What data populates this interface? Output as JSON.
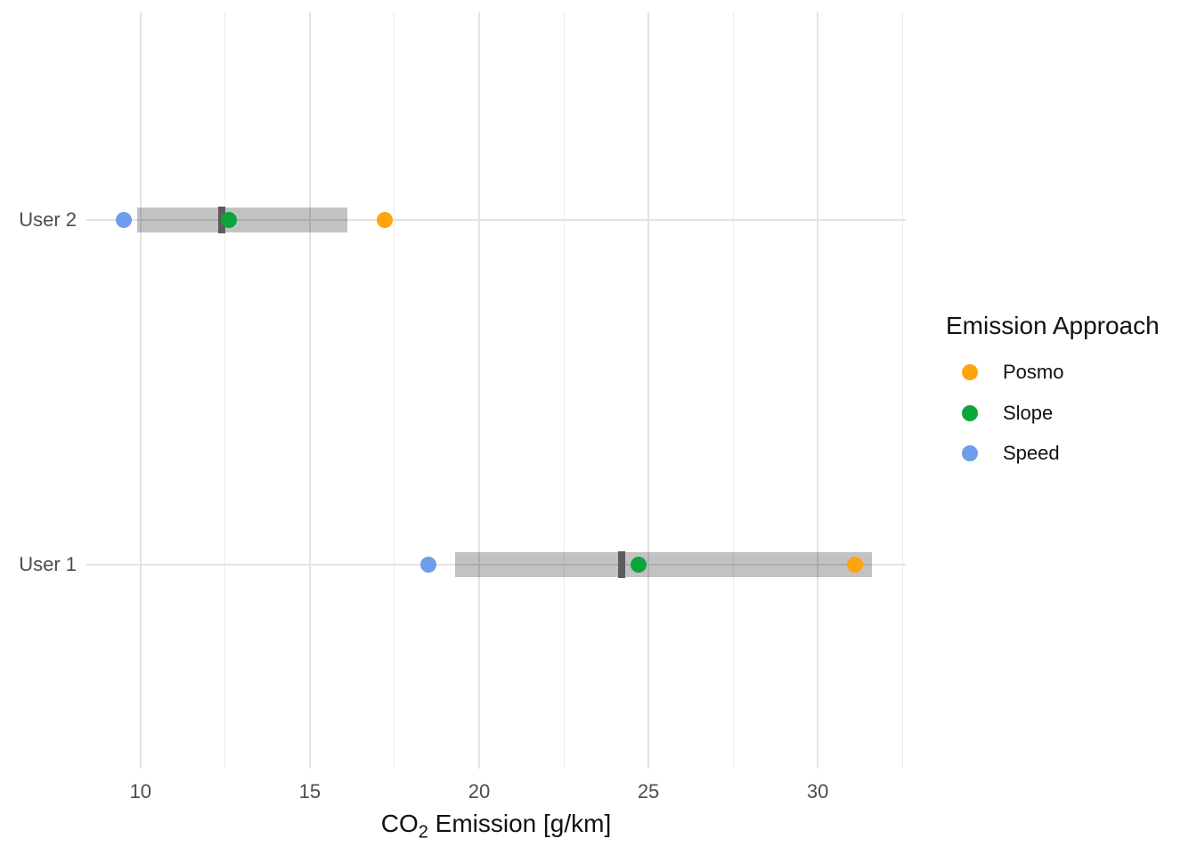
{
  "chart_data": {
    "type": "scatter",
    "title": "",
    "xlabel": {
      "prefix": "CO",
      "sub": "2",
      "suffix": " Emission [g/km]"
    },
    "ylabel": "",
    "xlim": [
      8.4,
      32.6
    ],
    "x_ticks": [
      10,
      15,
      20,
      25,
      30
    ],
    "x_minor_ticks": [
      12.5,
      17.5,
      22.5,
      27.5,
      32.5
    ],
    "grid": true,
    "categories": [
      "User 2",
      "User 1"
    ],
    "series": [
      {
        "name": "Posmo",
        "color": "#FFA40D",
        "values": [
          17.2,
          31.1
        ]
      },
      {
        "name": "Slope",
        "color": "#0CA53C",
        "values": [
          12.6,
          24.7
        ]
      },
      {
        "name": "Speed",
        "color": "#6D9EEB",
        "values": [
          9.5,
          18.5
        ]
      }
    ],
    "ranges": [
      {
        "category": "User 2",
        "low": 9.9,
        "high": 16.1,
        "median": 12.4
      },
      {
        "category": "User 1",
        "low": 19.3,
        "high": 31.6,
        "median": 24.2
      }
    ],
    "legend": {
      "title": "Emission Approach",
      "position": "right",
      "items": [
        "Posmo",
        "Slope",
        "Speed"
      ]
    },
    "colors": {
      "range_bar": "rgba(0,0,0,0.24)",
      "median_line": "#5C5C5C",
      "grid_major": "#E3E3E3",
      "grid_minor": "#ECECEC",
      "tick_text": "#4D4D4D",
      "title_text": "#111111",
      "background": "#FFFFFF"
    }
  }
}
